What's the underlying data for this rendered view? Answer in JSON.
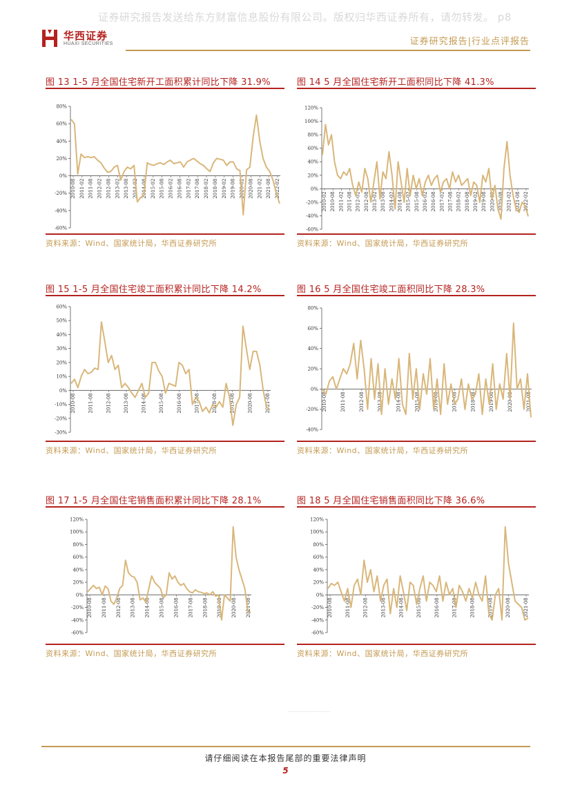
{
  "watermark": "证券研究报告发送给东方财富信息股份有限公司。版权归华西证券所有，请勿转发。 p8",
  "header": {
    "logo_cn": "华西证券",
    "logo_en": "HUAXI SECURITIES",
    "report_type": "证券研究报告|行业点评报告"
  },
  "colors": {
    "brand_red": "#b4221f",
    "accent_gold": "#c49a52",
    "series": "#d9b679"
  },
  "chart_data": [
    {
      "type": "line",
      "title": "图 13 1-5 月全国住宅新开工面积累计同比下降 31.9%",
      "source": "资料来源：Wind、国家统计局，华西证券研究所",
      "ylim": [
        -60,
        80
      ],
      "yticks": [
        "80%",
        "60%",
        "40%",
        "20%",
        "0%",
        "-20%",
        "-40%",
        "-60%"
      ],
      "xticks": [
        "2010-08",
        "2011-02",
        "2011-08",
        "2012-02",
        "2012-08",
        "2013-02",
        "2013-08",
        "2014-02",
        "2014-08",
        "2015-02",
        "2015-08",
        "2016-02",
        "2016-08",
        "2017-02",
        "2017-08",
        "2018-02",
        "2018-08",
        "2019-02",
        "2019-08",
        "2020-02",
        "2020-08",
        "2021-02",
        "2021-08",
        "2022-02"
      ],
      "values": [
        65,
        60,
        2,
        25,
        21,
        22,
        21,
        22,
        18,
        15,
        9,
        4,
        5,
        10,
        12,
        -5,
        5,
        10,
        8,
        12,
        -30,
        -25,
        -22,
        15,
        13,
        12,
        14,
        15,
        13,
        16,
        18,
        14,
        15,
        16,
        10,
        16,
        18,
        20,
        17,
        14,
        12,
        8,
        5,
        15,
        20,
        19,
        18,
        12,
        16,
        16,
        8,
        6,
        -45,
        7,
        10,
        45,
        70,
        40,
        20,
        10,
        5,
        -5,
        -20,
        -32
      ]
    },
    {
      "type": "line",
      "title": "图 14 5 月全国住宅新开工面积同比下降 41.3%",
      "source": "资料来源：Wind、国家统计局，华西证券研究所",
      "ylim": [
        -60,
        120
      ],
      "yticks": [
        "120%",
        "100%",
        "80%",
        "60%",
        "40%",
        "20%",
        "0%",
        "-20%",
        "-40%",
        "-60%"
      ],
      "xticks": [
        "2010-02",
        "2010-08",
        "2011-02",
        "2011-08",
        "2012-02",
        "2012-08",
        "2013-02",
        "2013-08",
        "2014-02",
        "2014-08",
        "2015-02",
        "2015-08",
        "2016-02",
        "2016-08",
        "2017-02",
        "2017-08",
        "2018-02",
        "2018-08",
        "2019-02",
        "2019-08",
        "2020-02",
        "2020-08",
        "2021-02",
        "2021-08",
        "2022-02"
      ],
      "values": [
        50,
        95,
        65,
        80,
        40,
        20,
        15,
        25,
        20,
        30,
        5,
        -10,
        10,
        -5,
        30,
        15,
        -20,
        10,
        40,
        -15,
        25,
        15,
        55,
        20,
        -30,
        40,
        10,
        -20,
        30,
        -10,
        20,
        0,
        15,
        -10,
        10,
        20,
        5,
        15,
        20,
        -5,
        10,
        15,
        0,
        25,
        10,
        20,
        5,
        10,
        15,
        -10,
        10,
        5,
        -20,
        20,
        10,
        30,
        -15,
        5,
        -30,
        -45,
        30,
        70,
        20,
        -10,
        -30,
        -35,
        -20,
        -25,
        -41
      ]
    },
    {
      "type": "line",
      "title": "图 15 1-5 月全国住宅竣工面积累计同比下降 14.2%",
      "source": "资料来源：Wind、国家统计局，华西证券研究所",
      "ylim": [
        -30,
        60
      ],
      "yticks": [
        "60%",
        "50%",
        "40%",
        "30%",
        "20%",
        "10%",
        "0%",
        "-10%",
        "-20%",
        "-30%"
      ],
      "xticks": [
        "2010-08",
        "2011-08",
        "2012-08",
        "2013-08",
        "2014-08",
        "2015-08",
        "2016-08",
        "2017-08",
        "2018-08",
        "2019-08",
        "2020-08",
        "2021-08"
      ],
      "values": [
        5,
        8,
        2,
        10,
        15,
        12,
        13,
        16,
        15,
        49,
        35,
        20,
        25,
        15,
        18,
        2,
        5,
        2,
        -2,
        -5,
        0,
        5,
        -5,
        -2,
        20,
        20,
        14,
        10,
        -2,
        5,
        4,
        3,
        20,
        18,
        12,
        15,
        -10,
        -5,
        -8,
        -15,
        -12,
        -16,
        -10,
        -12,
        -8,
        -12,
        5,
        -5,
        -25,
        -10,
        -5,
        46,
        30,
        15,
        28,
        28,
        18,
        0,
        -12,
        -14
      ]
    },
    {
      "type": "line",
      "title": "图 16 5 月全国住宅竣工面积同比下降 28.3%",
      "source": "资料来源：Wind、国家统计局，华西证券研究所",
      "ylim": [
        -40,
        80
      ],
      "yticks": [
        "80%",
        "60%",
        "40%",
        "20%",
        "0%",
        "-20%",
        "-40%"
      ],
      "xticks": [
        "2010-08",
        "2011-08",
        "2012-08",
        "2013-08",
        "2014-08",
        "2015-08",
        "2016-08",
        "2017-08",
        "2018-08",
        "2019-08",
        "2020-08",
        "2021-08"
      ],
      "values": [
        0,
        -5,
        8,
        12,
        0,
        10,
        20,
        15,
        25,
        45,
        10,
        48,
        20,
        -20,
        30,
        -10,
        25,
        -25,
        20,
        -15,
        10,
        -10,
        30,
        -15,
        -25,
        35,
        -10,
        20,
        -20,
        15,
        -5,
        30,
        -20,
        10,
        -25,
        25,
        -15,
        5,
        -15,
        -10,
        10,
        -20,
        5,
        -10,
        -5,
        15,
        -25,
        10,
        -15,
        25,
        -20,
        5,
        -10,
        35,
        -10,
        65,
        0,
        10,
        -20,
        15,
        -28
      ]
    },
    {
      "type": "line",
      "title": "图 17 1-5 月全国住宅销售面积累计同比下降 28.1%",
      "source": "资料来源：Wind、国家统计局，华西证券研究所",
      "ylim": [
        -60,
        120
      ],
      "yticks": [
        "120%",
        "100%",
        "80%",
        "60%",
        "40%",
        "20%",
        "0%",
        "-20%",
        "-40%",
        "-60%"
      ],
      "xticks": [
        "2010-08",
        "2011-08",
        "2012-08",
        "2013-08",
        "2014-08",
        "2015-08",
        "2016-08",
        "2017-08",
        "2018-08",
        "2019-08",
        "2020-08",
        "2021-08"
      ],
      "values": [
        5,
        10,
        15,
        10,
        12,
        0,
        14,
        10,
        -10,
        -15,
        -5,
        10,
        15,
        55,
        35,
        30,
        28,
        20,
        -8,
        -5,
        -12,
        10,
        30,
        20,
        15,
        10,
        -5,
        0,
        35,
        25,
        30,
        20,
        15,
        18,
        10,
        5,
        3,
        8,
        5,
        4,
        2,
        3,
        0,
        5,
        -2,
        0,
        -40,
        0,
        -5,
        -10,
        108,
        60,
        40,
        25,
        10,
        -25,
        -28
      ]
    },
    {
      "type": "line",
      "title": "图 18 5 月全国住宅销售面积同比下降 36.6%",
      "source": "资料来源：Wind、国家统计局，华西证券研究所",
      "ylim": [
        -60,
        120
      ],
      "yticks": [
        "120%",
        "100%",
        "80%",
        "60%",
        "40%",
        "20%",
        "0%",
        "-20%",
        "-40%",
        "-60%"
      ],
      "xticks": [
        "2010-08",
        "2011-08",
        "2012-08",
        "2013-08",
        "2014-08",
        "2015-08",
        "2016-08",
        "2017-08",
        "2018-08",
        "2019-08",
        "2020-08",
        "2021-08"
      ],
      "values": [
        10,
        18,
        15,
        20,
        5,
        -10,
        10,
        -20,
        15,
        25,
        0,
        55,
        20,
        40,
        5,
        30,
        -10,
        15,
        25,
        -30,
        10,
        -20,
        30,
        5,
        -25,
        20,
        15,
        -15,
        10,
        30,
        -10,
        20,
        15,
        5,
        30,
        -10,
        20,
        0,
        10,
        -20,
        15,
        5,
        -10,
        10,
        -5,
        20,
        0,
        -10,
        30,
        -30,
        -40,
        0,
        10,
        -40,
        108,
        50,
        20,
        -10,
        -15,
        -20,
        -40,
        -37
      ]
    }
  ],
  "footer": {
    "note": "请仔细阅读在本报告尾部的重要法律声明",
    "page": "5"
  }
}
